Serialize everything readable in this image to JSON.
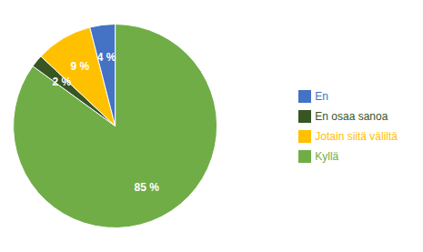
{
  "chart_data": {
    "type": "pie",
    "categories": [
      "Kyllä",
      "En osaa sanoa",
      "Jotain siitä väliltä",
      "En"
    ],
    "values": [
      85,
      2,
      9,
      4
    ],
    "value_labels": [
      "85 %",
      "2 %",
      "9 %",
      "4 %"
    ],
    "colors": [
      "#70ad47",
      "#375623",
      "#ffc000",
      "#4472c4"
    ],
    "data_labels": true,
    "legend": "right"
  }
}
